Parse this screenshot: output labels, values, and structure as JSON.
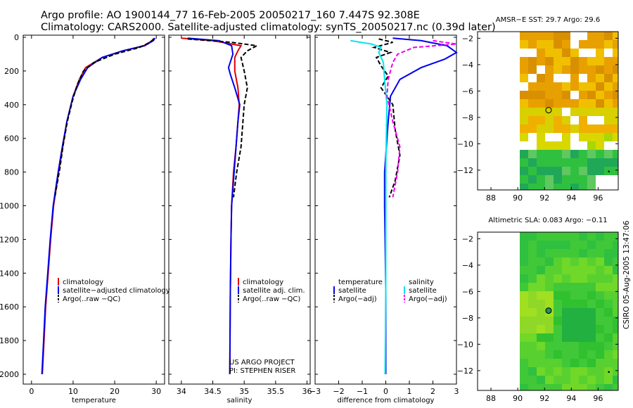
{
  "header": {
    "line1": "Argo profile: AO 1900144_77 16-Feb-2005 20050217_160 7.447S 92.308E",
    "line2": "Climatology: CARS2000. Satellite-adjusted climatology: synTS_20050217.nc (0.39d later)"
  },
  "side_label": "CSIRO 05-Aug-2005 13:47:06",
  "colors": {
    "climatology": "#dd0000",
    "satellite": "#0000ee",
    "argo": "#000000",
    "salinity_sat": "#00e5ee",
    "salinity_argo": "#ee00ee"
  },
  "chart_data": [
    {
      "id": "temperature",
      "type": "line",
      "xlabel": "temperature",
      "ylim": [
        2050,
        0
      ],
      "xlim": [
        -2,
        32
      ],
      "xticks": [
        0,
        10,
        20,
        30
      ],
      "yticks": [
        0,
        200,
        400,
        600,
        800,
        1000,
        1200,
        1400,
        1600,
        1800,
        2000
      ],
      "legend": [
        "climatology",
        "satellite−adjusted climatology",
        "Argo(..raw −QC)"
      ],
      "series": [
        {
          "name": "climatology",
          "color": "#dd0000",
          "dash": false,
          "points": [
            [
              29.5,
              5
            ],
            [
              29,
              20
            ],
            [
              27,
              50
            ],
            [
              22,
              80
            ],
            [
              17,
              120
            ],
            [
              13,
              180
            ],
            [
              11.5,
              250
            ],
            [
              10,
              350
            ],
            [
              8.5,
              500
            ],
            [
              7.5,
              650
            ],
            [
              6.5,
              800
            ],
            [
              5.3,
              1000
            ],
            [
              4.6,
              1200
            ],
            [
              4.0,
              1400
            ],
            [
              3.4,
              1600
            ],
            [
              3.0,
              1800
            ],
            [
              2.6,
              2000
            ]
          ]
        },
        {
          "name": "satellite−adjusted climatology",
          "color": "#0000ee",
          "dash": false,
          "points": [
            [
              29.7,
              5
            ],
            [
              29.3,
              20
            ],
            [
              27.2,
              50
            ],
            [
              22,
              80
            ],
            [
              17,
              120
            ],
            [
              13.5,
              180
            ],
            [
              11.8,
              250
            ],
            [
              10,
              350
            ],
            [
              8.5,
              500
            ],
            [
              7.4,
              650
            ],
            [
              6.4,
              800
            ],
            [
              5.2,
              1000
            ],
            [
              4.5,
              1200
            ],
            [
              3.9,
              1400
            ],
            [
              3.3,
              1600
            ],
            [
              2.9,
              1800
            ],
            [
              2.5,
              2000
            ]
          ]
        },
        {
          "name": "Argo(..raw −QC)",
          "color": "#000000",
          "dash": true,
          "points": [
            [
              29.4,
              10
            ],
            [
              28.5,
              30
            ],
            [
              26,
              60
            ],
            [
              20,
              100
            ],
            [
              15,
              150
            ],
            [
              12.5,
              200
            ],
            [
              11,
              280
            ],
            [
              9.8,
              380
            ],
            [
              8.6,
              500
            ],
            [
              7.6,
              640
            ],
            [
              6.8,
              780
            ],
            [
              5.6,
              950
            ]
          ]
        }
      ]
    },
    {
      "id": "salinity",
      "type": "line",
      "xlabel": "salinity",
      "ylim": [
        2050,
        0
      ],
      "xlim": [
        33.8,
        36.05
      ],
      "xticks": [
        34,
        34.5,
        35,
        35.5,
        36
      ],
      "legend": [
        "climatology",
        "satellite adj. clim.",
        "Argo(..raw −QC)"
      ],
      "annotation": [
        "US ARGO PROJECT",
        "PI: STEPHEN RISER"
      ],
      "series": [
        {
          "name": "climatology",
          "color": "#dd0000",
          "dash": false,
          "points": [
            [
              34.0,
              5
            ],
            [
              34.5,
              20
            ],
            [
              34.95,
              50
            ],
            [
              34.9,
              80
            ],
            [
              34.85,
              120
            ],
            [
              34.85,
              200
            ],
            [
              34.9,
              300
            ],
            [
              34.92,
              400
            ],
            [
              34.9,
              500
            ],
            [
              34.87,
              650
            ],
            [
              34.83,
              800
            ],
            [
              34.8,
              1000
            ],
            [
              34.79,
              1200
            ],
            [
              34.78,
              1500
            ],
            [
              34.77,
              2000
            ]
          ]
        },
        {
          "name": "satellite adj. clim.",
          "color": "#0000ee",
          "dash": false,
          "points": [
            [
              34.1,
              5
            ],
            [
              34.6,
              20
            ],
            [
              34.8,
              50
            ],
            [
              34.82,
              100
            ],
            [
              34.75,
              180
            ],
            [
              34.78,
              220
            ],
            [
              34.85,
              300
            ],
            [
              34.93,
              400
            ],
            [
              34.9,
              500
            ],
            [
              34.87,
              650
            ],
            [
              34.84,
              800
            ],
            [
              34.8,
              1000
            ],
            [
              34.79,
              1200
            ],
            [
              34.78,
              1500
            ],
            [
              34.77,
              2000
            ]
          ]
        },
        {
          "name": "Argo(..raw −QC)",
          "color": "#000000",
          "dash": true,
          "points": [
            [
              34.1,
              10
            ],
            [
              34.8,
              30
            ],
            [
              35.2,
              50
            ],
            [
              35.05,
              80
            ],
            [
              34.95,
              120
            ],
            [
              35.0,
              200
            ],
            [
              35.05,
              300
            ],
            [
              35.0,
              400
            ],
            [
              34.98,
              500
            ],
            [
              34.95,
              650
            ],
            [
              34.88,
              800
            ],
            [
              34.83,
              950
            ]
          ]
        }
      ]
    },
    {
      "id": "difference",
      "type": "line",
      "xlabel": "difference from climatology",
      "ylim": [
        2050,
        0
      ],
      "xlim": [
        -3,
        3
      ],
      "xticks": [
        -3,
        -2,
        -1,
        0,
        1,
        2,
        3
      ],
      "legend_left": {
        "title": "temperature",
        "items": [
          "satellite",
          "Argo(−adj)"
        ]
      },
      "legend_right": {
        "title": "salinity",
        "items": [
          "satellite",
          "Argo(−adj)"
        ]
      },
      "series": [
        {
          "name": "temperature satellite",
          "color": "#0000ee",
          "dash": false,
          "points": [
            [
              0.3,
              5
            ],
            [
              1.5,
              20
            ],
            [
              2.6,
              50
            ],
            [
              3,
              90
            ],
            [
              2.5,
              130
            ],
            [
              1.5,
              180
            ],
            [
              0.6,
              250
            ],
            [
              0.2,
              350
            ],
            [
              0.1,
              500
            ],
            [
              0,
              700
            ],
            [
              -0.05,
              800
            ],
            [
              -0.05,
              1000
            ],
            [
              0,
              1500
            ],
            [
              0,
              2000
            ]
          ]
        },
        {
          "name": "temperature Argo(−adj)",
          "color": "#000000",
          "dash": true,
          "points": [
            [
              -0.3,
              10
            ],
            [
              0.3,
              30
            ],
            [
              -0.5,
              60
            ],
            [
              0.2,
              90
            ],
            [
              -0.4,
              120
            ],
            [
              -0.2,
              170
            ],
            [
              0.1,
              230
            ],
            [
              -0.2,
              300
            ],
            [
              0.3,
              400
            ],
            [
              0.4,
              550
            ],
            [
              0.6,
              700
            ],
            [
              0.4,
              850
            ],
            [
              0.15,
              950
            ]
          ]
        },
        {
          "name": "salinity satellite",
          "color": "#00e5ee",
          "dash": false,
          "points": [
            [
              -1.5,
              20
            ],
            [
              -0.6,
              40
            ],
            [
              -0.2,
              60
            ],
            [
              -0.3,
              90
            ],
            [
              -0.1,
              150
            ],
            [
              -0.05,
              250
            ],
            [
              0.05,
              400
            ],
            [
              0.02,
              600
            ],
            [
              0,
              800
            ],
            [
              0,
              1000
            ],
            [
              0,
              1500
            ],
            [
              -0.03,
              2000
            ]
          ]
        },
        {
          "name": "salinity Argo(−adj)",
          "color": "#ee00ee",
          "dash": true,
          "points": [
            [
              2,
              20
            ],
            [
              3,
              40
            ],
            [
              1.2,
              60
            ],
            [
              0.5,
              100
            ],
            [
              0.3,
              150
            ],
            [
              0.1,
              250
            ],
            [
              0.05,
              350
            ],
            [
              0.3,
              500
            ],
            [
              0.6,
              650
            ],
            [
              0.5,
              800
            ],
            [
              0.3,
              950
            ]
          ]
        }
      ]
    },
    {
      "id": "sst_map",
      "type": "heatmap",
      "title": "AMSR−E SST: 29.7 Argo: 29.6",
      "xlim": [
        87,
        97.5
      ],
      "ylim": [
        -13.5,
        -1.5
      ],
      "xticks": [
        88,
        90,
        92,
        94,
        96
      ],
      "yticks": [
        -2,
        -4,
        -6,
        -8,
        -10,
        -12
      ],
      "marker": [
        92.3,
        -7.45
      ]
    },
    {
      "id": "sla_map",
      "type": "heatmap",
      "title": "Altimetric SLA: 0.083 Argo: −0.11",
      "xlim": [
        87,
        97.5
      ],
      "ylim": [
        -13.5,
        -1.5
      ],
      "xticks": [
        88,
        90,
        92,
        94,
        96
      ],
      "yticks": [
        -2,
        -4,
        -6,
        -8,
        -10,
        -12
      ],
      "marker": [
        92.3,
        -7.45
      ]
    }
  ]
}
